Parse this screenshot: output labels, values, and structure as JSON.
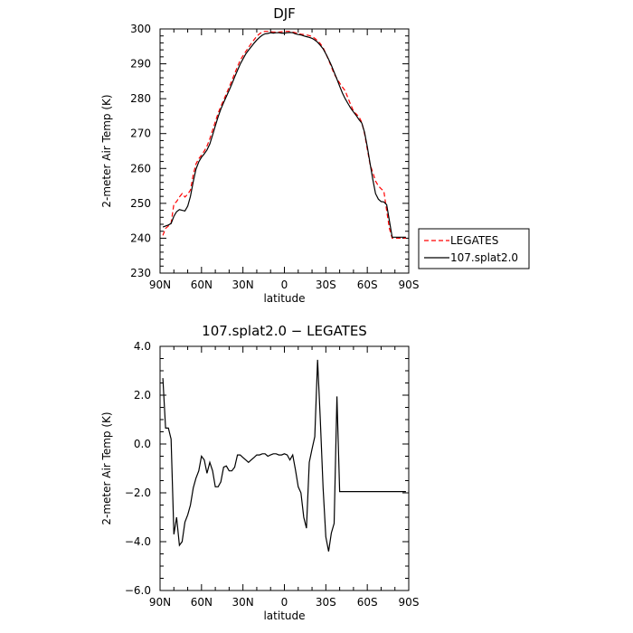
{
  "chart_data": [
    {
      "type": "line",
      "title": "DJF",
      "xlabel": "latitude",
      "ylabel": "2-meter Air Temp (K)",
      "xlim": [
        90,
        -90
      ],
      "ylim": [
        230,
        300
      ],
      "y_ticks": [
        "230",
        "240",
        "250",
        "260",
        "270",
        "280",
        "290",
        "300"
      ],
      "x_ticks": [
        "90N",
        "60N",
        "30N",
        "0",
        "30S",
        "60S",
        "90S"
      ],
      "x": [
        88,
        86,
        84,
        82,
        80,
        78,
        76,
        74,
        72,
        70,
        68,
        66,
        64,
        62,
        60,
        58,
        56,
        54,
        52,
        50,
        48,
        46,
        44,
        42,
        40,
        38,
        36,
        34,
        32,
        30,
        28,
        26,
        24,
        22,
        20,
        18,
        16,
        14,
        12,
        10,
        8,
        6,
        4,
        2,
        0,
        -2,
        -4,
        -6,
        -8,
        -10,
        -12,
        -14,
        -16,
        -18,
        -20,
        -22,
        -24,
        -26,
        -28,
        -30,
        -32,
        -34,
        -36,
        -38,
        -40,
        -42,
        -44,
        -46,
        -48,
        -50,
        -52,
        -54,
        -56,
        -58,
        -60,
        -62,
        -64,
        -66,
        -68,
        -70,
        -72,
        -74,
        -76,
        -78,
        -80,
        -82,
        -84,
        -86,
        -88
      ],
      "series": [
        {
          "name": "LEGATES",
          "color": "#ff0000",
          "dash": true,
          "values": [
            240.8,
            242.8,
            243.5,
            244.3,
            249.8,
            250.5,
            251.8,
            252.8,
            251.8,
            252.6,
            253.8,
            258.2,
            261.3,
            262.8,
            263.8,
            265.0,
            266.4,
            268.5,
            271.0,
            273.4,
            275.8,
            277.8,
            279.6,
            281.4,
            283.3,
            285.2,
            287.2,
            289.2,
            291.0,
            292.3,
            293.5,
            294.7,
            295.8,
            296.9,
            297.9,
            298.6,
            299.1,
            299.3,
            299.3,
            299.2,
            299.1,
            299.1,
            299.1,
            299.2,
            299.3,
            299.3,
            299.3,
            299.1,
            298.9,
            298.7,
            298.5,
            298.4,
            298.3,
            298.1,
            297.8,
            297.3,
            296.6,
            295.8,
            294.6,
            293.0,
            291.1,
            289.2,
            287.1,
            285.8,
            284.5,
            283.3,
            282.3,
            280.2,
            278.3,
            276.4,
            275.6,
            274.8,
            273.2,
            270.0,
            265.5,
            261.2,
            258.8,
            256.4,
            255.0,
            254.2,
            253.5,
            247.9,
            242.8,
            240.0,
            240.0,
            240.0,
            240.0,
            240.0,
            240.0
          ]
        },
        {
          "name": "107.splat2.0",
          "color": "#000000",
          "dash": false,
          "values": [
            243.2,
            243.5,
            243.8,
            244.2,
            246.3,
            247.6,
            248.2,
            248.0,
            247.8,
            249.2,
            252.0,
            256.2,
            259.8,
            261.9,
            263.2,
            264.2,
            265.3,
            267.0,
            269.6,
            272.2,
            274.8,
            277.0,
            278.9,
            280.6,
            282.4,
            284.2,
            286.2,
            288.1,
            289.9,
            291.4,
            292.8,
            293.9,
            294.9,
            295.9,
            296.8,
            297.6,
            298.2,
            298.6,
            298.7,
            298.9,
            298.8,
            298.9,
            298.9,
            298.8,
            298.8,
            298.9,
            299.0,
            298.9,
            298.6,
            298.4,
            298.3,
            298.0,
            297.8,
            297.6,
            297.3,
            296.8,
            296.2,
            295.3,
            294.3,
            292.9,
            291.3,
            289.6,
            287.6,
            285.6,
            283.6,
            281.6,
            280.0,
            278.6,
            277.3,
            276.2,
            275.2,
            274.0,
            273.0,
            270.4,
            266.2,
            261.5,
            256.8,
            252.8,
            251.2,
            250.5,
            250.4,
            249.6,
            245.0,
            240.3,
            240.3,
            240.3,
            240.3,
            240.3,
            240.3
          ]
        }
      ],
      "legend": "right",
      "grid": false
    },
    {
      "type": "line",
      "title": "107.splat2.0 − LEGATES",
      "xlabel": "latitude",
      "ylabel": "2-meter Air Temp (K)",
      "xlim": [
        90,
        -90
      ],
      "ylim": [
        -6.0,
        4.0
      ],
      "y_ticks": [
        "−6.0",
        "−4.0",
        "−2.0",
        "0.0",
        "2.0",
        "4.0"
      ],
      "x_ticks": [
        "90N",
        "60N",
        "30N",
        "0",
        "30S",
        "60S",
        "90S"
      ],
      "x": [
        88,
        86,
        84,
        82,
        80,
        78,
        76,
        74,
        72,
        70,
        68,
        66,
        64,
        62,
        60,
        58,
        56,
        54,
        52,
        50,
        48,
        46,
        44,
        42,
        40,
        38,
        36,
        34,
        32,
        30,
        28,
        26,
        24,
        22,
        20,
        18,
        16,
        14,
        12,
        10,
        8,
        6,
        4,
        2,
        0,
        -2,
        -4,
        -6,
        -8,
        -10,
        -12,
        -14,
        -16,
        -18,
        -20,
        -22,
        -24,
        -26,
        -28,
        -30,
        -32,
        -34,
        -36,
        -38,
        -40,
        -42,
        -44,
        -46,
        -48,
        -50,
        -52,
        -54,
        -56,
        -58,
        -60,
        -62,
        -64,
        -66,
        -68,
        -70,
        -72,
        -74,
        -76,
        -78,
        -80,
        -82,
        -84,
        -86,
        -88
      ],
      "series": [
        {
          "color": "#000000",
          "values": [
            2.7,
            0.65,
            0.65,
            0.2,
            -3.7,
            -3.0,
            -4.15,
            -4.0,
            -3.2,
            -2.9,
            -2.5,
            -1.8,
            -1.4,
            -1.1,
            -0.5,
            -0.65,
            -1.2,
            -0.75,
            -1.1,
            -1.75,
            -1.75,
            -1.55,
            -0.95,
            -0.9,
            -1.1,
            -1.1,
            -0.95,
            -0.45,
            -0.45,
            -0.55,
            -0.65,
            -0.75,
            -0.65,
            -0.55,
            -0.45,
            -0.45,
            -0.4,
            -0.4,
            -0.5,
            -0.45,
            -0.4,
            -0.4,
            -0.45,
            -0.45,
            -0.4,
            -0.45,
            -0.65,
            -0.45,
            -1.05,
            -1.75,
            -2.0,
            -3.0,
            -3.45,
            -0.75,
            -0.2,
            0.3,
            3.45,
            1.0,
            -1.8,
            -3.8,
            -4.4,
            -3.65,
            -3.25,
            1.95,
            -1.95,
            -1.95,
            -1.95,
            -1.95,
            -1.95,
            -1.95,
            -1.95,
            -1.95,
            -1.95,
            -1.95,
            -1.95,
            -1.95,
            -1.95,
            -1.95,
            -1.95,
            -1.95,
            -1.95,
            -1.95,
            -1.95,
            -1.95,
            -1.95,
            -1.95,
            -1.95,
            -1.95,
            -1.95
          ]
        }
      ],
      "grid": false
    }
  ]
}
